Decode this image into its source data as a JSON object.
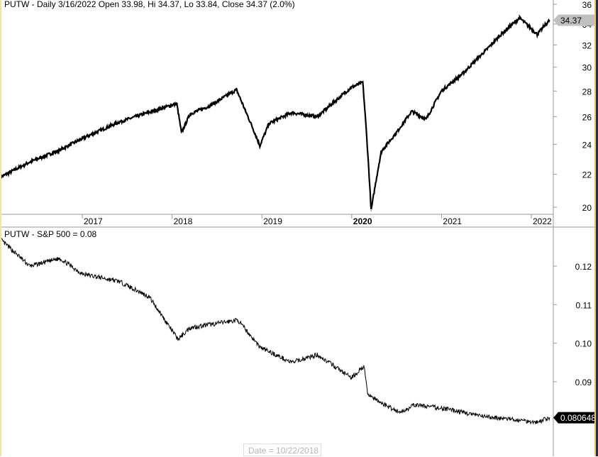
{
  "chart_data": [
    {
      "type": "line",
      "title": "PUTW - Daily 3/16/2022 Open 33.98, Hi 34.37, Lo 33.84, Close 34.37 (2.0%)",
      "y_scale": "log",
      "ylim": [
        19.3,
        36.3
      ],
      "yticks": [
        "20",
        "22",
        "24",
        "26",
        "28",
        "30",
        "32",
        "34",
        "36"
      ],
      "xticks": [
        "2017",
        "2018",
        "2019",
        "2020",
        "2021",
        "2022"
      ],
      "last_value_label": "34.37",
      "last_value_color": "#c0c0c0",
      "series": [
        {
          "x": [
            "2016-02-01",
            "2016-06-01",
            "2016-10-01",
            "2017-01-01",
            "2017-06-01",
            "2018-01-20",
            "2018-02-08",
            "2018-03-15",
            "2018-06-01",
            "2018-09-20",
            "2018-10-25",
            "2018-12-24",
            "2019-01-31",
            "2019-05-01",
            "2019-08-15",
            "2019-12-31",
            "2020-02-15",
            "2020-03-20",
            "2020-04-30",
            "2020-06-30",
            "2020-09-01",
            "2020-10-30",
            "2020-12-31",
            "2021-03-31",
            "2021-06-30",
            "2021-09-01",
            "2021-11-15",
            "2022-01-25",
            "2022-03-16"
          ],
          "y": [
            21.8,
            22.8,
            23.6,
            24.4,
            25.6,
            27.0,
            24.8,
            26.2,
            26.8,
            28.1,
            26.5,
            23.9,
            25.5,
            26.3,
            26.0,
            28.3,
            28.7,
            19.8,
            23.5,
            24.8,
            26.4,
            25.8,
            28.0,
            29.5,
            31.5,
            33.0,
            34.6,
            33.0,
            34.37
          ]
        }
      ]
    },
    {
      "type": "line",
      "title": "PUTW - S&P 500 = 0.08",
      "ylim": [
        0.0707,
        0.1301
      ],
      "yticks": [
        "0.09",
        "0.10",
        "0.11",
        "0.12"
      ],
      "last_value_label": "0.080648",
      "last_value_color": "#000000",
      "series": [
        {
          "x": [
            "2016-02-01",
            "2016-06-01",
            "2016-10-01",
            "2017-01-01",
            "2017-06-01",
            "2017-10-01",
            "2018-01-25",
            "2018-03-15",
            "2018-09-25",
            "2018-12-24",
            "2019-05-01",
            "2019-08-15",
            "2019-12-31",
            "2020-02-20",
            "2020-03-05",
            "2020-04-15",
            "2020-07-15",
            "2020-09-15",
            "2021-01-15",
            "2021-06-15",
            "2021-11-15",
            "2022-01-25",
            "2022-03-16"
          ],
          "y": [
            0.127,
            0.12,
            0.122,
            0.118,
            0.116,
            0.112,
            0.101,
            0.104,
            0.106,
            0.099,
            0.095,
            0.097,
            0.091,
            0.094,
            0.087,
            0.085,
            0.082,
            0.084,
            0.083,
            0.081,
            0.08,
            0.0795,
            0.080648
          ]
        }
      ]
    }
  ],
  "tooltip": "Date = 10/22/2018"
}
